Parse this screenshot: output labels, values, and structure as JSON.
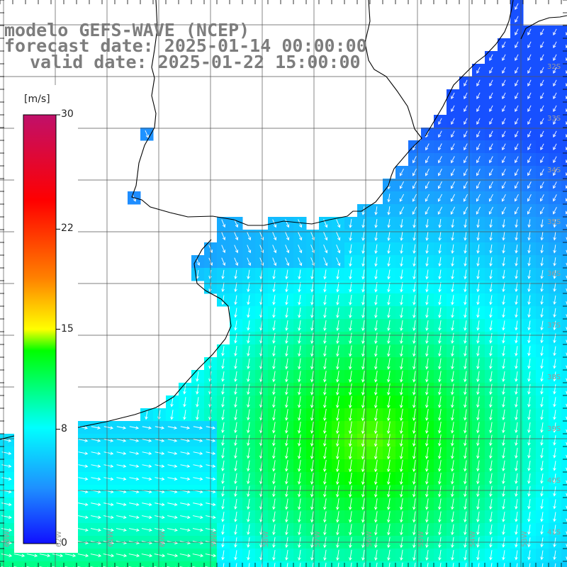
{
  "header": {
    "line1": "modelo GEFS-WAVE (NCEP)",
    "line2": "forecast date: 2025-01-14 00:00:00",
    "line3": "valid date: 2025-01-22 15:00:00"
  },
  "colorbar": {
    "unit": "[m/s]",
    "ticks": [
      {
        "label": "30",
        "value": 30
      },
      {
        "label": "22",
        "value": 22
      },
      {
        "label": "15",
        "value": 15
      },
      {
        "label": "8",
        "value": 8
      },
      {
        "label": "0",
        "value": 0
      }
    ],
    "colors": [
      "#1010ff",
      "#1e90ff",
      "#00ffff",
      "#00ff00",
      "#ffff00",
      "#ff8000",
      "#ff0000",
      "#c0106a"
    ]
  },
  "lat_labels": [
    "32S",
    "33S",
    "34S",
    "35S",
    "36S",
    "37S",
    "38S",
    "39S",
    "40S",
    "41S"
  ],
  "lon_labels": [
    "63W",
    "62W",
    "61W",
    "60W",
    "59W",
    "58W",
    "57W",
    "56W",
    "55W",
    "54W",
    "53W"
  ],
  "grid": {
    "lon_min": -64,
    "lon_max": -53,
    "lat_min": -42,
    "lat_max": -31,
    "step_deg": 1
  }
}
